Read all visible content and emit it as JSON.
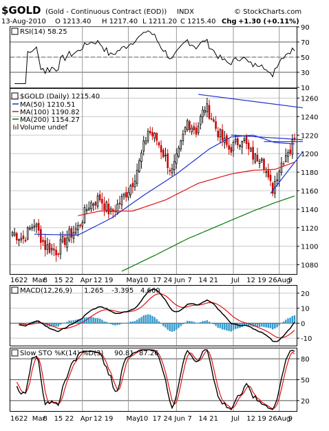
{
  "header": {
    "symbol": "$GOLD",
    "name": "(Gold - Continuous Contract (EOD))",
    "exchange": "INDX",
    "brand": "© StockCharts.com",
    "date": "13-Aug-2010",
    "open": "O 1213.40",
    "high": "H 1217.40",
    "low": "L 1211.20",
    "close": "C 1215.40",
    "chg_label": "Chg",
    "chg_value": "+1.30 (+0.11%)"
  },
  "colors": {
    "up": "#000000",
    "down": "#cc0000",
    "ma50": "#1a2fd0",
    "ma100": "#dd1111",
    "ma200": "#007700",
    "trend": "#1a2fd0",
    "hist": "#3399cc",
    "rsi_overbought": "#2e8b57",
    "grid": "#c8c8c8"
  },
  "chart_data": [
    {
      "type": "line",
      "title": "RSI(14) 58.25",
      "ylim": [
        10,
        90
      ],
      "yticks": [
        90,
        70,
        50,
        30,
        10
      ],
      "reference_lines": [
        70,
        50,
        30
      ],
      "last_value": 58.25
    },
    {
      "type": "candlestick",
      "title": "$GOLD (Daily) 1215.40",
      "ylim": [
        1070,
        1270
      ],
      "yticks": [
        1260,
        1240,
        1220,
        1200,
        1180,
        1160,
        1140,
        1120,
        1100,
        1080
      ],
      "legend": [
        {
          "label": "MA(50) 1210.51",
          "color": "#1a2fd0"
        },
        {
          "label": "MA(100) 1190.82",
          "color": "#dd1111"
        },
        {
          "label": "MA(200) 1154.27",
          "color": "#007700"
        },
        {
          "label": "Volume undef",
          "color": "#888888"
        }
      ],
      "close_anchors": [
        [
          0,
          1115
        ],
        [
          5,
          1108
        ],
        [
          10,
          1125
        ],
        [
          15,
          1100
        ],
        [
          20,
          1095
        ],
        [
          25,
          1110
        ],
        [
          30,
          1120
        ],
        [
          35,
          1145
        ],
        [
          40,
          1152
        ],
        [
          45,
          1135
        ],
        [
          50,
          1150
        ],
        [
          55,
          1170
        ],
        [
          58,
          1190
        ],
        [
          62,
          1225
        ],
        [
          66,
          1215
        ],
        [
          70,
          1195
        ],
        [
          73,
          1180
        ],
        [
          76,
          1200
        ],
        [
          80,
          1235
        ],
        [
          84,
          1225
        ],
        [
          88,
          1250
        ],
        [
          90,
          1245
        ],
        [
          93,
          1228
        ],
        [
          96,
          1215
        ],
        [
          99,
          1205
        ],
        [
          102,
          1210
        ],
        [
          105,
          1218
        ],
        [
          108,
          1203
        ],
        [
          111,
          1195
        ],
        [
          114,
          1200
        ],
        [
          117,
          1170
        ],
        [
          119,
          1162
        ],
        [
          121,
          1178
        ],
        [
          123,
          1190
        ],
        [
          125,
          1200
        ],
        [
          126,
          1205
        ],
        [
          127,
          1203
        ],
        [
          128,
          1211
        ],
        [
          129,
          1215.4
        ]
      ],
      "ma_anchors": {
        "ma50": [
          [
            10,
            1113
          ],
          [
            30,
            1112
          ],
          [
            45,
            1130
          ],
          [
            60,
            1155
          ],
          [
            75,
            1178
          ],
          [
            90,
            1205
          ],
          [
            100,
            1218
          ],
          [
            110,
            1220
          ],
          [
            120,
            1212
          ],
          [
            129,
            1210.51
          ]
        ],
        "ma100": [
          [
            30,
            1133
          ],
          [
            40,
            1138
          ],
          [
            55,
            1138
          ],
          [
            70,
            1150
          ],
          [
            85,
            1168
          ],
          [
            100,
            1178
          ],
          [
            110,
            1182
          ],
          [
            120,
            1183
          ],
          [
            129,
            1190.82
          ]
        ],
        "ma200": [
          [
            50,
            1073
          ],
          [
            65,
            1090
          ],
          [
            80,
            1108
          ],
          [
            95,
            1123
          ],
          [
            110,
            1138
          ],
          [
            120,
            1147
          ],
          [
            129,
            1154.27
          ]
        ]
      },
      "trendlines": [
        {
          "from": [
            85,
            1264
          ],
          "to": [
            129,
            1248
          ]
        },
        {
          "from": [
            100,
            1220
          ],
          "to": [
            129,
            1215
          ]
        },
        {
          "from": [
            115,
            1213
          ],
          "to": [
            129,
            1213
          ]
        },
        {
          "from": [
            118,
            1157
          ],
          "to": [
            129,
            1202
          ]
        }
      ]
    },
    {
      "type": "line",
      "title": "MACD(12,26,9)",
      "values_text": {
        "macd": "1.265",
        "signal": "-3.395",
        "hist": "4.660"
      },
      "ylim": [
        -15,
        25
      ],
      "yticks": [
        20,
        10,
        0,
        -10
      ],
      "series": [
        {
          "name": "MACD",
          "color": "#000000"
        },
        {
          "name": "Signal",
          "color": "#dd1111"
        },
        {
          "name": "Histogram",
          "color": "#3399cc"
        }
      ],
      "last_values": {
        "macd": 1.265,
        "signal": -3.395,
        "hist": 4.66
      }
    },
    {
      "type": "line",
      "title": "Slow STO %K(14) %D(3)",
      "values_text": {
        "k": "90.81",
        "d": "87.26"
      },
      "ylim": [
        5,
        95
      ],
      "yticks": [
        80,
        50,
        20
      ],
      "reference_lines": [
        80,
        50,
        20
      ],
      "last_values": {
        "k": 90.81,
        "d": 87.26
      }
    }
  ],
  "xaxis": {
    "ticks": [
      {
        "label": "16",
        "i": 0
      },
      {
        "label": "22",
        "i": 4
      },
      {
        "label": "Mar",
        "i": 10
      },
      {
        "label": "8",
        "i": 15
      },
      {
        "label": "15",
        "i": 20
      },
      {
        "label": "22",
        "i": 25
      },
      {
        "label": "Apr",
        "i": 32
      },
      {
        "label": "12",
        "i": 38
      },
      {
        "label": "19",
        "i": 43
      },
      {
        "label": "May",
        "i": 53
      },
      {
        "label": "10",
        "i": 59
      },
      {
        "label": "17",
        "i": 65
      },
      {
        "label": "24",
        "i": 70
      },
      {
        "label": "Jun",
        "i": 75
      },
      {
        "label": "7",
        "i": 81
      },
      {
        "label": "14",
        "i": 86
      },
      {
        "label": "21",
        "i": 91
      },
      {
        "label": "Jul",
        "i": 101
      },
      {
        "label": "12",
        "i": 108
      },
      {
        "label": "19",
        "i": 113
      },
      {
        "label": "26",
        "i": 118
      },
      {
        "label": "Aug",
        "i": 122
      },
      {
        "label": "9",
        "i": 127
      }
    ],
    "month_lines": [
      32,
      53,
      75,
      101,
      122
    ]
  }
}
